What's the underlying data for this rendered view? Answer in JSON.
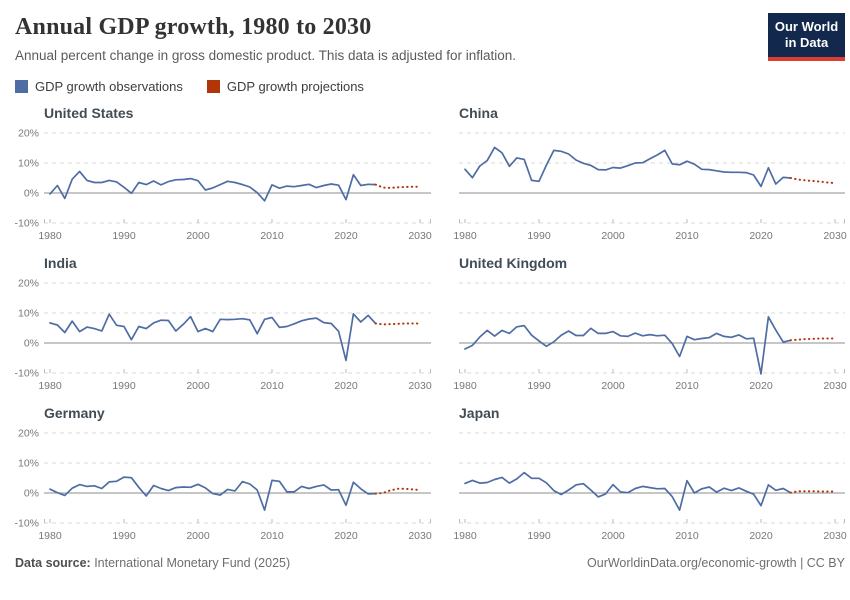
{
  "header": {
    "title": "Annual GDP growth, 1980 to 2030",
    "subtitle": "Annual percent change in gross domestic product. This data is adjusted for inflation.",
    "logo": {
      "line1": "Our World",
      "line2": "in Data"
    }
  },
  "legend": {
    "observations": {
      "label": "GDP growth observations",
      "color": "#4e6da4"
    },
    "projections": {
      "label": "GDP growth projections",
      "color": "#b13507"
    }
  },
  "colors": {
    "grid_dashed": "#d9d9d9",
    "zero_line": "#8c8c8c",
    "tick_mark": "#bbbbbb",
    "axis_text": "#787878",
    "panel_title": "#414c56",
    "logo_bg": "#12294d",
    "logo_bar": "#dc3d33"
  },
  "footer": {
    "source_label": "Data source:",
    "source_value": " International Monetary Fund (2025)",
    "attribution": "OurWorldinData.org/economic-growth | CC BY"
  },
  "chart_data": [
    {
      "type": "line",
      "title": "United States",
      "xlabel": "",
      "ylabel": "",
      "ylim": [
        -10,
        20
      ],
      "yticks": [
        -10,
        0,
        10,
        20
      ],
      "xticks": [
        1980,
        1990,
        2000,
        2010,
        2020,
        2030
      ],
      "x_range": [
        1980,
        2024
      ],
      "observations": [
        -0.3,
        2.5,
        -1.8,
        4.6,
        7.2,
        4.2,
        3.5,
        3.5,
        4.2,
        3.7,
        1.9,
        -0.1,
        3.5,
        2.8,
        4.0,
        2.7,
        3.8,
        4.4,
        4.5,
        4.8,
        4.1,
        1.0,
        1.7,
        2.8,
        3.9,
        3.5,
        2.8,
        2.0,
        0.1,
        -2.6,
        2.7,
        1.6,
        2.3,
        2.1,
        2.5,
        2.9,
        1.8,
        2.5,
        3.0,
        2.6,
        -2.2,
        6.1,
        2.5,
        2.9,
        2.8
      ],
      "projection_x_range": [
        2025,
        2030
      ],
      "projections": [
        1.8,
        1.7,
        1.9,
        2.0,
        2.1,
        2.1
      ]
    },
    {
      "type": "line",
      "title": "China",
      "xlabel": "",
      "ylabel": "",
      "ylim": [
        -10,
        20
      ],
      "yticks": [
        -10,
        0,
        10,
        20
      ],
      "xticks": [
        1980,
        1990,
        2000,
        2010,
        2020,
        2030
      ],
      "x_range": [
        1980,
        2024
      ],
      "observations": [
        7.9,
        5.1,
        9.0,
        10.8,
        15.2,
        13.4,
        8.9,
        11.7,
        11.2,
        4.2,
        3.9,
        9.3,
        14.2,
        13.9,
        13.0,
        11.0,
        9.9,
        9.2,
        7.8,
        7.7,
        8.5,
        8.3,
        9.1,
        10.0,
        10.1,
        11.4,
        12.7,
        14.2,
        9.7,
        9.4,
        10.6,
        9.6,
        7.9,
        7.8,
        7.4,
        7.0,
        6.9,
        6.9,
        6.8,
        6.0,
        2.2,
        8.4,
        3.0,
        5.2,
        5.0
      ],
      "projection_x_range": [
        2025,
        2030
      ],
      "projections": [
        4.5,
        4.2,
        4.0,
        3.8,
        3.5,
        3.3
      ]
    },
    {
      "type": "line",
      "title": "India",
      "xlabel": "",
      "ylabel": "",
      "ylim": [
        -10,
        20
      ],
      "yticks": [
        -10,
        0,
        10,
        20
      ],
      "xticks": [
        1980,
        1990,
        2000,
        2010,
        2020,
        2030
      ],
      "x_range": [
        1980,
        2024
      ],
      "observations": [
        6.7,
        6.0,
        3.5,
        7.3,
        3.8,
        5.3,
        4.8,
        4.0,
        9.6,
        5.9,
        5.5,
        1.1,
        5.5,
        4.8,
        6.7,
        7.6,
        7.5,
        4.0,
        6.2,
        8.8,
        3.8,
        4.8,
        3.8,
        7.9,
        7.8,
        7.9,
        8.1,
        7.7,
        3.1,
        7.9,
        8.5,
        5.2,
        5.5,
        6.4,
        7.4,
        8.0,
        8.3,
        6.8,
        6.5,
        3.9,
        -5.8,
        9.7,
        7.0,
        9.2,
        6.5
      ],
      "projection_x_range": [
        2025,
        2030
      ],
      "projections": [
        6.2,
        6.3,
        6.4,
        6.5,
        6.5,
        6.5
      ]
    },
    {
      "type": "line",
      "title": "United Kingdom",
      "xlabel": "",
      "ylabel": "",
      "ylim": [
        -10,
        20
      ],
      "yticks": [
        -10,
        0,
        10,
        20
      ],
      "xticks": [
        1980,
        1990,
        2000,
        2010,
        2020,
        2030
      ],
      "x_range": [
        1980,
        2024
      ],
      "observations": [
        -2.0,
        -0.8,
        2.0,
        4.2,
        2.3,
        4.2,
        3.2,
        5.4,
        5.8,
        2.6,
        0.7,
        -1.1,
        0.4,
        2.6,
        4.0,
        2.5,
        2.5,
        4.9,
        3.2,
        3.2,
        3.8,
        2.4,
        2.2,
        3.3,
        2.4,
        2.8,
        2.4,
        2.6,
        -0.2,
        -4.5,
        2.2,
        1.1,
        1.5,
        1.8,
        3.2,
        2.2,
        1.9,
        2.7,
        1.4,
        1.6,
        -10.3,
        8.7,
        4.3,
        0.3,
        0.9
      ],
      "projection_x_range": [
        2025,
        2030
      ],
      "projections": [
        1.1,
        1.3,
        1.4,
        1.5,
        1.5,
        1.5
      ]
    },
    {
      "type": "line",
      "title": "Germany",
      "xlabel": "",
      "ylabel": "",
      "ylim": [
        -10,
        20
      ],
      "yticks": [
        -10,
        0,
        10,
        20
      ],
      "xticks": [
        1980,
        1990,
        2000,
        2010,
        2020,
        2030
      ],
      "x_range": [
        1980,
        2024
      ],
      "observations": [
        1.3,
        0.1,
        -0.8,
        1.6,
        2.8,
        2.2,
        2.4,
        1.5,
        3.7,
        3.9,
        5.3,
        5.1,
        1.9,
        -1.0,
        2.5,
        1.5,
        0.8,
        1.8,
        2.0,
        1.9,
        2.9,
        1.7,
        -0.2,
        -0.7,
        1.2,
        0.7,
        3.8,
        3.0,
        1.0,
        -5.7,
        4.2,
        3.9,
        0.4,
        0.4,
        2.2,
        1.5,
        2.2,
        2.7,
        1.0,
        1.1,
        -4.1,
        3.6,
        1.4,
        -0.3,
        -0.2
      ],
      "projection_x_range": [
        2025,
        2030
      ],
      "projections": [
        0.0,
        0.9,
        1.4,
        1.4,
        1.2,
        1.0
      ]
    },
    {
      "type": "line",
      "title": "Japan",
      "xlabel": "",
      "ylabel": "",
      "ylim": [
        -10,
        20
      ],
      "yticks": [
        -10,
        0,
        10,
        20
      ],
      "xticks": [
        1980,
        1990,
        2000,
        2010,
        2020,
        2030
      ],
      "x_range": [
        1980,
        2024
      ],
      "observations": [
        3.2,
        4.2,
        3.3,
        3.5,
        4.5,
        5.2,
        3.3,
        4.7,
        6.8,
        4.9,
        4.9,
        3.4,
        0.8,
        -0.5,
        1.0,
        2.7,
        3.1,
        1.0,
        -1.3,
        -0.3,
        2.8,
        0.4,
        0.1,
        1.5,
        2.2,
        1.8,
        1.4,
        1.5,
        -1.2,
        -5.7,
        4.1,
        0.0,
        1.4,
        2.0,
        0.3,
        1.6,
        0.8,
        1.7,
        0.6,
        -0.4,
        -4.2,
        2.7,
        0.9,
        1.5,
        0.1
      ],
      "projection_x_range": [
        2025,
        2030
      ],
      "projections": [
        0.6,
        0.6,
        0.6,
        0.5,
        0.5,
        0.5
      ]
    }
  ]
}
